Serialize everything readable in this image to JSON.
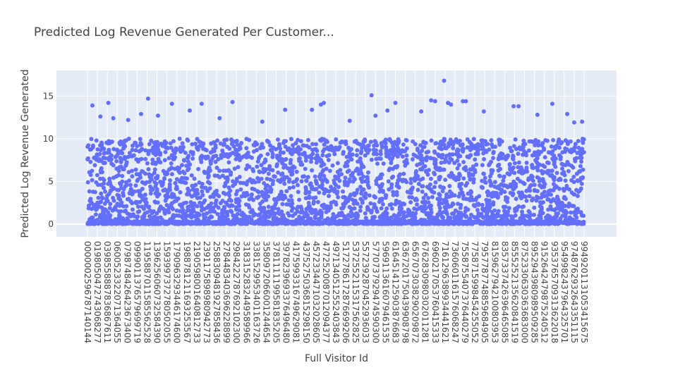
{
  "chart_data": {
    "type": "scatter",
    "title": "Predicted Log Revenue Generated Per Customer...",
    "xlabel": "Full Visitor Id",
    "ylabel": "Predicted Log Revenue Generated",
    "ylim": [
      -1.5,
      18
    ],
    "yticks": [
      0,
      5,
      10,
      15
    ],
    "grid": true,
    "marker_color": "#636efa",
    "plot_bg": "#e5ecf6",
    "x_tick_labels": [
      "0000002596787140144",
      "0198050472743068277",
      "0398558887836867611",
      "0600523322071364055",
      "0798748426423673400",
      "0999011376579699719",
      "1195887011585562528",
      "1396256060732584390",
      "1593997372780502055",
      "1790963293446174600",
      "1988781211693253567",
      "2190598001640812733",
      "2391175898980942773",
      "2588309481927858436",
      "2784483403696228899",
      "2984222787692102300",
      "3183152832449589966",
      "3381529953401163726",
      "3580972066001244654",
      "3781111199581835205",
      "3978239693376496480",
      "4175993316749629081",
      "4375275036815298150",
      "4572334471032028605",
      "4772520087012094377",
      "4971340512552403843",
      "5172786172876699206",
      "5372552115317562825",
      "5572392870452936033",
      "5770737929474590300",
      "5969113616079461535",
      "6164514125903876683",
      "6367201750439908798",
      "6567073038290209872",
      "6762830980302011281",
      "6960217053760415333",
      "7161296389934441621",
      "7360601161576068247",
      "7558755407376440279",
      "7758715998454255052",
      "7957787748859684905",
      "8159627942100803953",
      "8357337426396465085",
      "8555252135620841519",
      "8752330630363683000",
      "8952943980989509285",
      "9152642479875240512",
      "9353765709313622018",
      "9549982437964325701",
      "9748762932643351115",
      "9949201131053415675"
    ],
    "series": [
      {
        "distribution": {
          "n_points": 4200,
          "zero_share": 0.25,
          "typical_max": 10,
          "min": 0,
          "max": 16.8
        },
        "notable_points": [
          {
            "x": 0.5,
            "y": 13.9
          },
          {
            "x": 1.3,
            "y": 12.6
          },
          {
            "x": 2.1,
            "y": 14.2
          },
          {
            "x": 2.6,
            "y": 12.4
          },
          {
            "x": 4.1,
            "y": 12.2
          },
          {
            "x": 5.4,
            "y": 12.9
          },
          {
            "x": 6.1,
            "y": 14.7
          },
          {
            "x": 7.1,
            "y": 12.7
          },
          {
            "x": 8.5,
            "y": 14.1
          },
          {
            "x": 10.3,
            "y": 13.3
          },
          {
            "x": 11.5,
            "y": 14.1
          },
          {
            "x": 13.3,
            "y": 12.4
          },
          {
            "x": 14.6,
            "y": 14.3
          },
          {
            "x": 17.6,
            "y": 12.0
          },
          {
            "x": 19.9,
            "y": 13.4
          },
          {
            "x": 22.6,
            "y": 13.4
          },
          {
            "x": 23.5,
            "y": 14.0
          },
          {
            "x": 23.8,
            "y": 14.2
          },
          {
            "x": 26.4,
            "y": 12.1
          },
          {
            "x": 28.6,
            "y": 15.1
          },
          {
            "x": 29.0,
            "y": 12.7
          },
          {
            "x": 30.2,
            "y": 13.3
          },
          {
            "x": 31.0,
            "y": 14.2
          },
          {
            "x": 33.6,
            "y": 13.2
          },
          {
            "x": 34.6,
            "y": 14.5
          },
          {
            "x": 35.0,
            "y": 14.4
          },
          {
            "x": 35.9,
            "y": 16.8
          },
          {
            "x": 36.3,
            "y": 14.2
          },
          {
            "x": 36.6,
            "y": 14.0
          },
          {
            "x": 37.8,
            "y": 14.4
          },
          {
            "x": 38.1,
            "y": 14.4
          },
          {
            "x": 39.9,
            "y": 13.2
          },
          {
            "x": 42.9,
            "y": 13.8
          },
          {
            "x": 43.4,
            "y": 13.8
          },
          {
            "x": 45.3,
            "y": 12.8
          },
          {
            "x": 46.8,
            "y": 14.1
          },
          {
            "x": 48.3,
            "y": 12.9
          },
          {
            "x": 49.0,
            "y": 11.9
          },
          {
            "x": 49.8,
            "y": 12.0
          }
        ]
      }
    ]
  }
}
